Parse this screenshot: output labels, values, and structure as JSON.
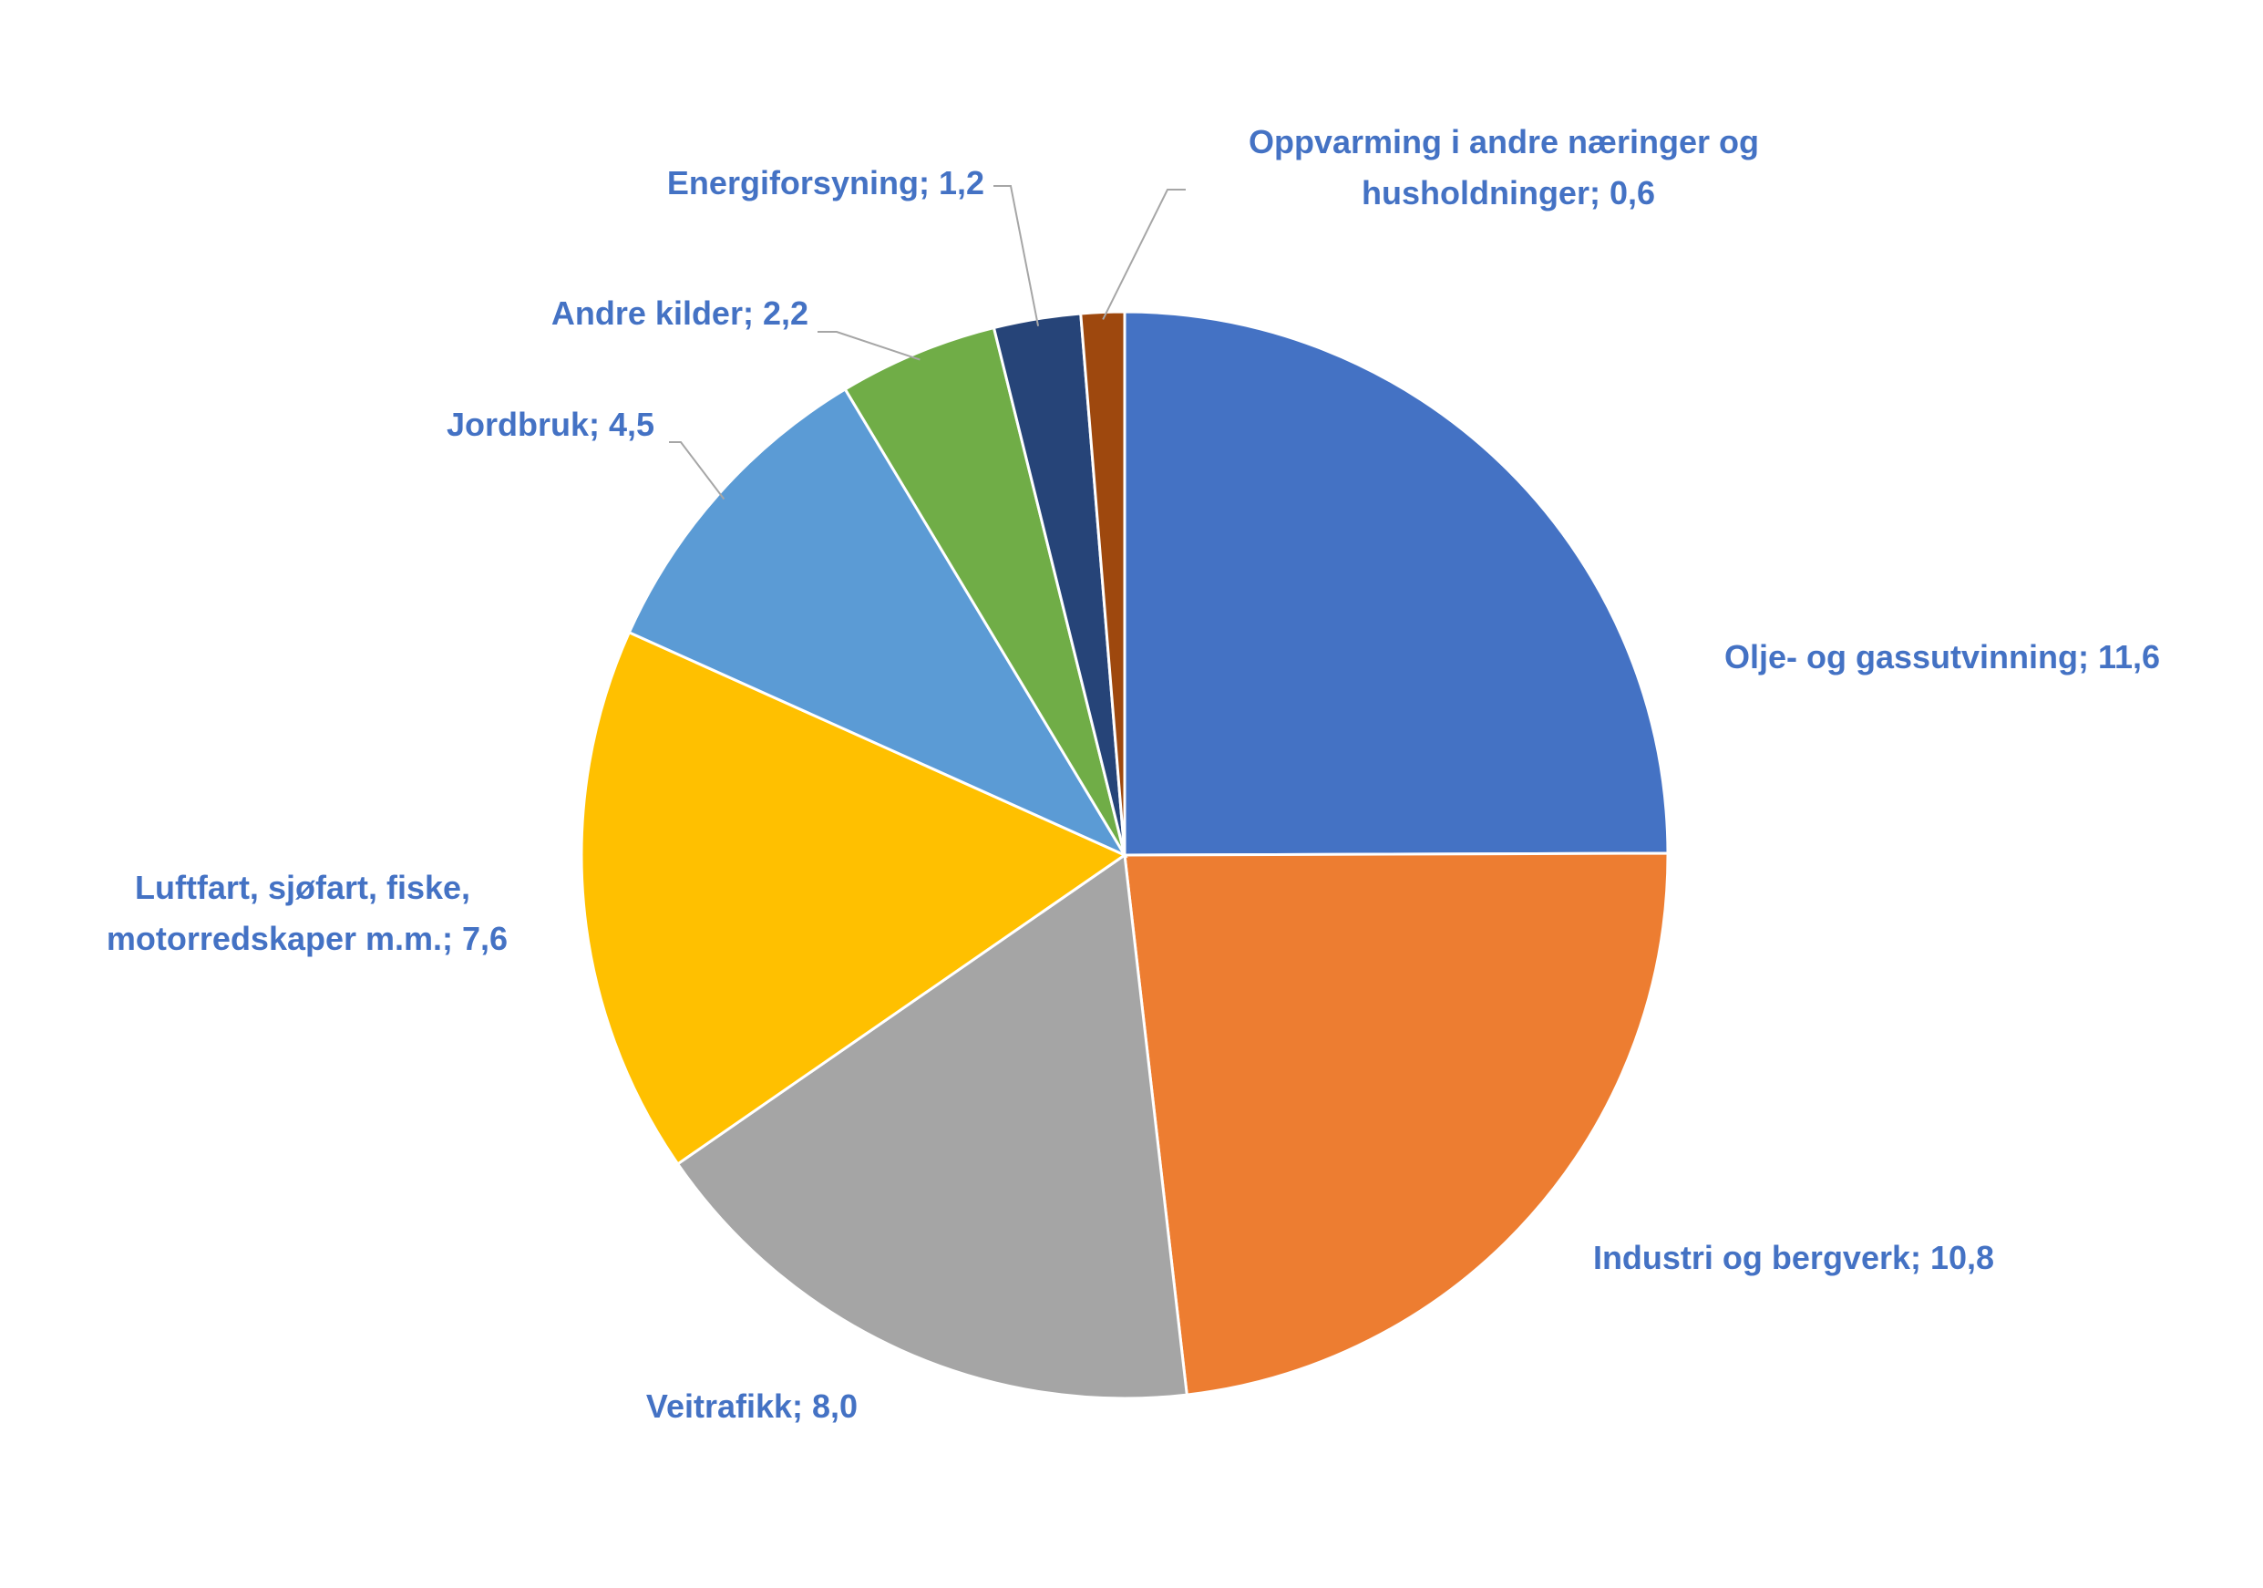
{
  "chart_data": {
    "type": "pie",
    "values": [
      11.6,
      10.8,
      8.0,
      7.6,
      4.5,
      2.2,
      1.2,
      0.6
    ],
    "value_labels": [
      "Olje- og gassutvinning; 11,6",
      "Industri og bergverk; 10,8",
      "Veitrafikk; 8,0",
      "Luftfart, sjøfart, fiske, motorredskaper m.m.; 7,6",
      "Jordbruk; 4,5",
      "Andre kilder; 2,2",
      "Energiforsyning; 1,2",
      "Oppvarming i andre næringer og husholdninger; 0,6"
    ],
    "colors": [
      "#4472c4",
      "#ed7d31",
      "#a5a5a5",
      "#ffc000",
      "#5b9bd5",
      "#70ad47",
      "#264478",
      "#9e480e"
    ]
  }
}
